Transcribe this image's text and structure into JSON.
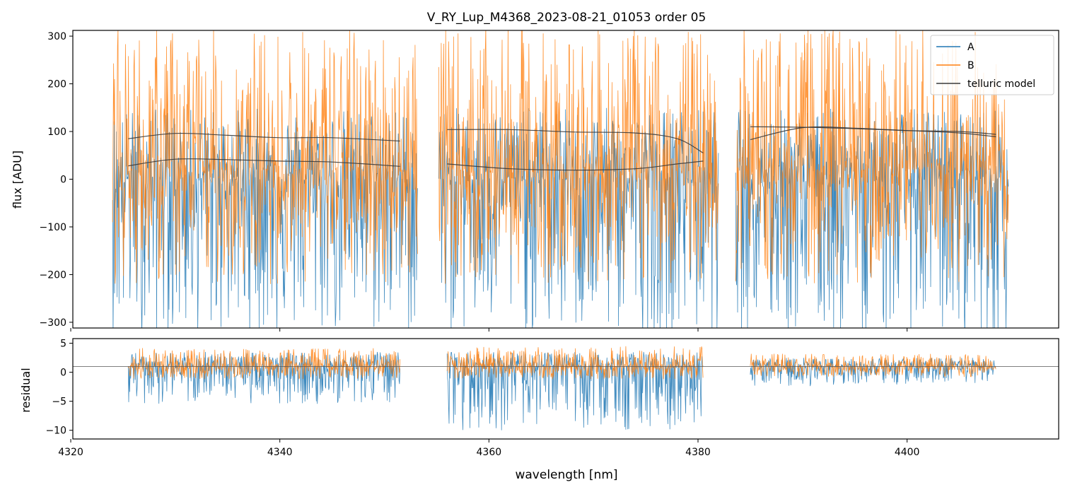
{
  "chart_data": [
    {
      "type": "line",
      "panel": "top",
      "title": "V_RY_Lup_M4368_2023-08-21_01053  order 05",
      "xlabel": "",
      "ylabel": "flux [ADU]",
      "xlim": [
        4320.2,
        4414.5
      ],
      "ylim": [
        -312,
        312
      ],
      "yticks": [
        -300,
        -200,
        -100,
        0,
        100,
        200,
        300
      ],
      "ytick_labels": [
        "−300",
        "−200",
        "−100",
        "0",
        "100",
        "200",
        "300"
      ],
      "xticks": [
        4340,
        4360,
        4380,
        4400
      ],
      "legend": {
        "position": "top-right",
        "entries": [
          "A",
          "B",
          "telluric model"
        ]
      },
      "segments": [
        [
          4324.0,
          4353.2
        ],
        [
          4355.2,
          4382.0
        ],
        [
          4383.6,
          4409.7
        ]
      ],
      "series": [
        {
          "name": "A",
          "color": "#1f77b4",
          "style": "noise",
          "center": 0,
          "up": 150,
          "down": 330
        },
        {
          "name": "B",
          "color": "#ff7f0e",
          "style": "noise",
          "center": 20,
          "up": 300,
          "down": 240
        },
        {
          "name": "telluric model",
          "color": "#3a3a3a",
          "style": "curves",
          "curves": [
            {
              "x": [
                4325.5,
                4330,
                4335,
                4340,
                4345,
                4351.5
              ],
              "y": [
                85,
                96,
                92,
                87,
                87,
                80
              ]
            },
            {
              "x": [
                4325.5,
                4330,
                4335,
                4340,
                4345,
                4351.5
              ],
              "y": [
                28,
                42,
                41,
                38,
                36,
                27
              ]
            },
            {
              "x": [
                4356.0,
                4362,
                4368,
                4374,
                4378,
                4380.5
              ],
              "y": [
                104,
                104,
                99,
                97,
                85,
                55
              ]
            },
            {
              "x": [
                4356.0,
                4362,
                4368,
                4374,
                4378,
                4380.5
              ],
              "y": [
                32,
                22,
                19,
                22,
                32,
                38
              ]
            },
            {
              "x": [
                4385.0,
                4390,
                4395,
                4400,
                4405,
                4408.5
              ],
              "y": [
                83,
                108,
                107,
                102,
                97,
                89
              ]
            },
            {
              "x": [
                4385.0,
                4390,
                4395,
                4400,
                4405,
                4408.5
              ],
              "y": [
                110,
                109,
                106,
                102,
                100,
                94
              ]
            }
          ]
        }
      ]
    },
    {
      "type": "line",
      "panel": "bottom",
      "xlabel": "wavelength [nm]",
      "ylabel": "residual",
      "xlim": [
        4320.2,
        4414.5
      ],
      "ylim": [
        -11.5,
        5.8
      ],
      "yticks": [
        -10,
        -5,
        0,
        5
      ],
      "ytick_labels": [
        "−10",
        "−5",
        "0",
        "5"
      ],
      "xticks": [
        4320,
        4340,
        4360,
        4380,
        4400
      ],
      "xtick_labels": [
        "4320",
        "4340",
        "4360",
        "4380",
        "4400"
      ],
      "reference_line": 1,
      "segments": [
        [
          4325.5,
          4351.5
        ],
        [
          4356.0,
          4380.5
        ],
        [
          4385.0,
          4408.5
        ]
      ],
      "series": [
        {
          "name": "A",
          "color": "#1f77b4",
          "style": "noise",
          "amps": [
            [
              2.5,
              6.5
            ],
            [
              2.5,
              11
            ],
            [
              1.5,
              3.5
            ]
          ]
        },
        {
          "name": "B",
          "color": "#ff7f0e",
          "style": "noise",
          "amps": [
            [
              3.2,
              2.2
            ],
            [
              3.5,
              2.2
            ],
            [
              2.2,
              1.8
            ]
          ]
        }
      ]
    }
  ]
}
